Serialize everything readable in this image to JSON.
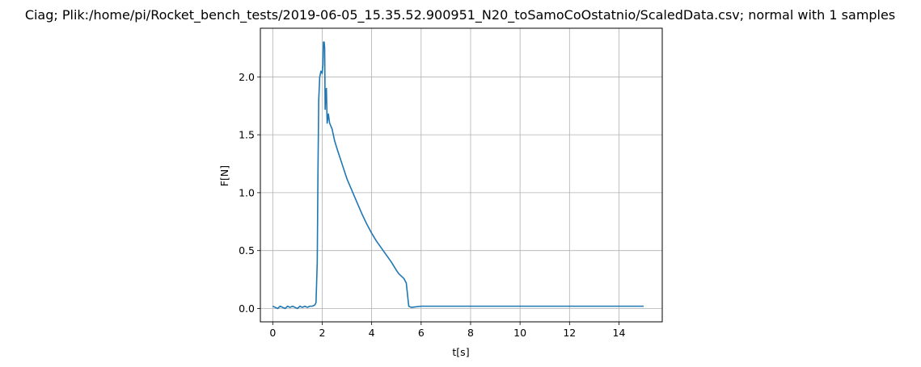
{
  "chart_data": {
    "type": "line",
    "title": "Ciag; Plik:/home/pi/Rocket_bench_tests/2019-06-05_15.35.52.900951_N20_toSamoCoOstatnio/ScaledData.csv; normal with 1 samples",
    "xlabel": "t[s]",
    "ylabel": "F[N]",
    "xlim": [
      -0.5,
      15.75
    ],
    "ylim": [
      -0.115,
      2.42
    ],
    "xticks": [
      0,
      2,
      4,
      6,
      8,
      10,
      12,
      14
    ],
    "yticks": [
      0.0,
      0.5,
      1.0,
      1.5,
      2.0
    ],
    "xtick_labels": [
      "0",
      "2",
      "4",
      "6",
      "8",
      "10",
      "12",
      "14"
    ],
    "ytick_labels": [
      "0.0",
      "0.5",
      "1.0",
      "1.5",
      "2.0"
    ],
    "grid": true,
    "line_color": "#1f77b4",
    "series": [
      {
        "name": "",
        "x": [
          0.0,
          0.1,
          0.2,
          0.3,
          0.4,
          0.5,
          0.6,
          0.7,
          0.8,
          0.9,
          1.0,
          1.1,
          1.2,
          1.3,
          1.4,
          1.5,
          1.6,
          1.7,
          1.75,
          1.8,
          1.83,
          1.86,
          1.9,
          1.95,
          2.0,
          2.03,
          2.05,
          2.08,
          2.1,
          2.12,
          2.14,
          2.17,
          2.2,
          2.25,
          2.3,
          2.4,
          2.5,
          2.6,
          2.8,
          3.0,
          3.2,
          3.4,
          3.6,
          3.8,
          4.0,
          4.2,
          4.4,
          4.6,
          4.8,
          5.0,
          5.1,
          5.2,
          5.3,
          5.4,
          5.5,
          5.6,
          6.0,
          6.5,
          7.0,
          7.5,
          8.0,
          8.5,
          9.0,
          9.5,
          10.0,
          10.5,
          11.0,
          11.5,
          12.0,
          12.5,
          13.0,
          13.5,
          14.0,
          14.5,
          15.0
        ],
        "y": [
          0.02,
          0.01,
          0.0,
          0.02,
          0.01,
          0.0,
          0.02,
          0.01,
          0.02,
          0.01,
          0.0,
          0.02,
          0.01,
          0.02,
          0.01,
          0.02,
          0.02,
          0.03,
          0.05,
          0.4,
          1.2,
          1.8,
          2.0,
          2.05,
          2.03,
          2.1,
          2.3,
          2.3,
          2.25,
          1.72,
          1.85,
          1.9,
          1.6,
          1.68,
          1.6,
          1.55,
          1.45,
          1.38,
          1.25,
          1.12,
          1.02,
          0.92,
          0.82,
          0.73,
          0.65,
          0.58,
          0.52,
          0.46,
          0.4,
          0.33,
          0.3,
          0.28,
          0.26,
          0.22,
          0.02,
          0.01,
          0.02,
          0.02,
          0.02,
          0.02,
          0.02,
          0.02,
          0.02,
          0.02,
          0.02,
          0.02,
          0.02,
          0.02,
          0.02,
          0.02,
          0.02,
          0.02,
          0.02,
          0.02,
          0.02
        ]
      }
    ]
  }
}
